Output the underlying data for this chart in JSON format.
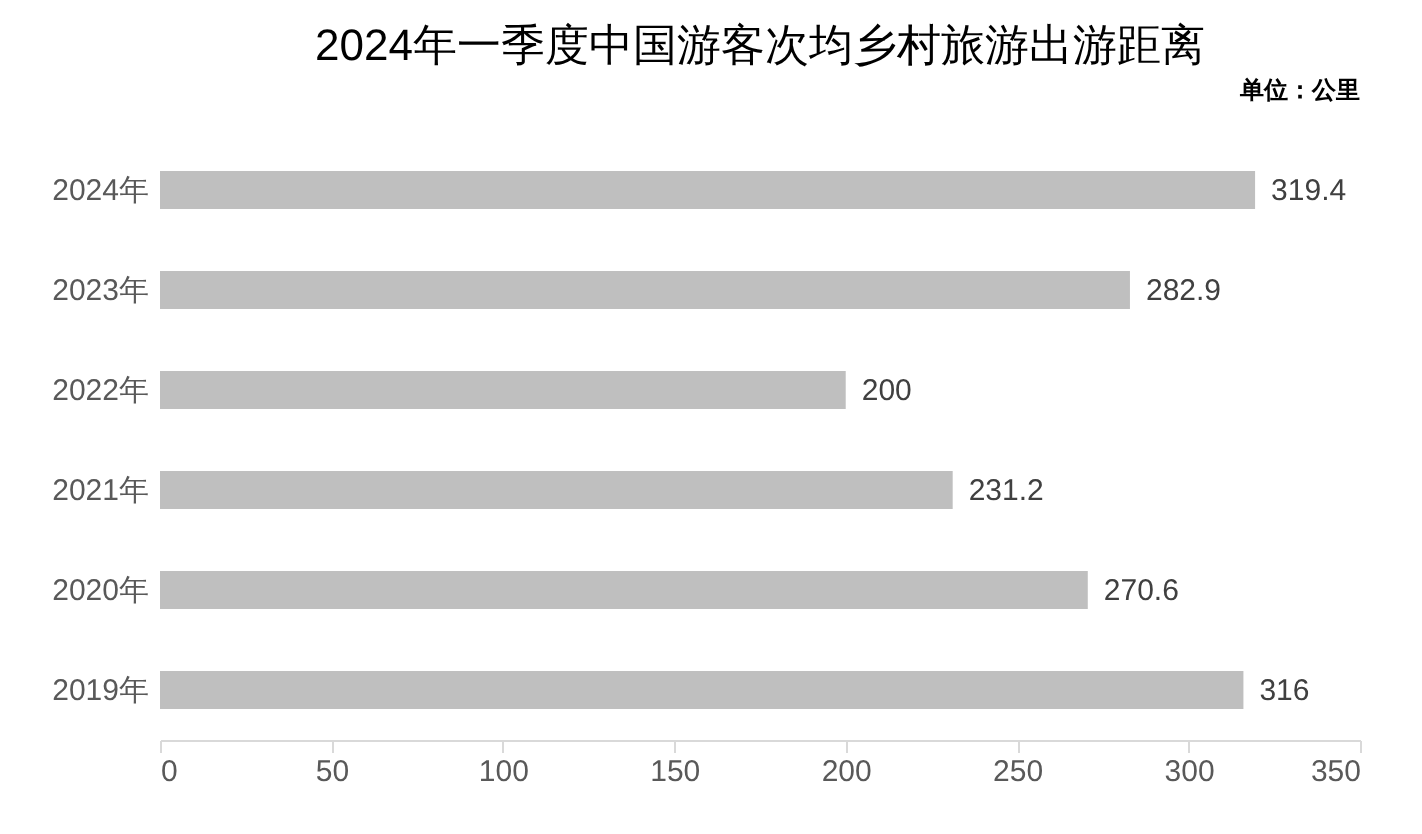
{
  "chart_data": {
    "type": "bar",
    "orientation": "horizontal",
    "title": "2024年一季度中国游客次均乡村旅游出游距离",
    "annotations": [
      "单位：公里"
    ],
    "categories": [
      "2024年",
      "2023年",
      "2022年",
      "2021年",
      "2020年",
      "2019年"
    ],
    "values": [
      319.4,
      282.9,
      200,
      231.2,
      270.6,
      316
    ],
    "color": "#bfbfbf",
    "xlim": [
      0,
      350
    ],
    "xticks": [
      0,
      50,
      100,
      150,
      200,
      250,
      300,
      350
    ],
    "data_labels": true,
    "grid": false
  }
}
